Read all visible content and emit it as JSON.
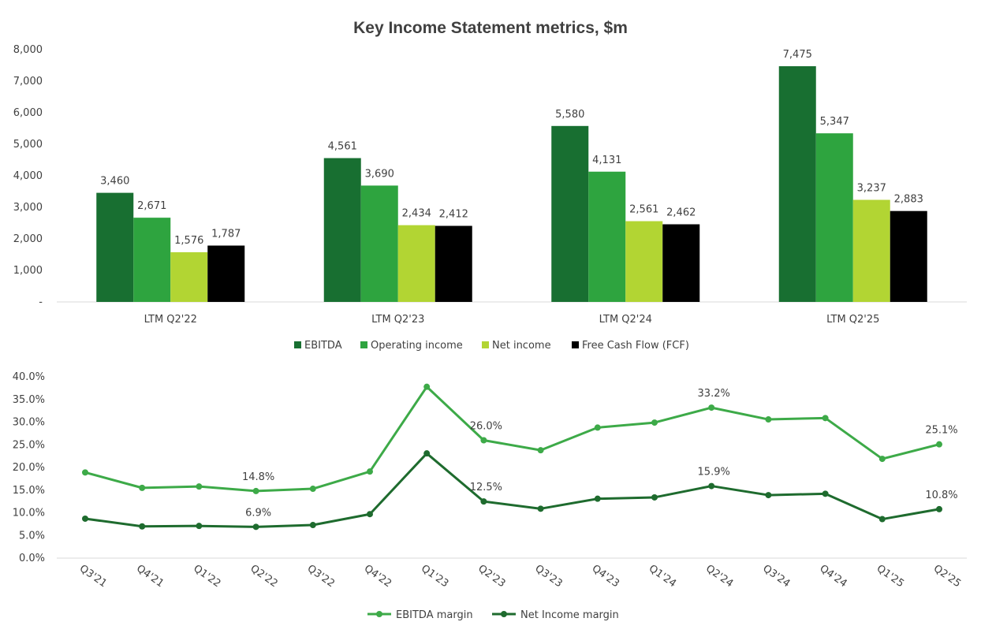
{
  "title": "Key Income Statement metrics, $m",
  "colors": {
    "ebitda": "#186F31",
    "operating_income": "#2EA43F",
    "net_income": "#B2D533",
    "fcf": "#000000",
    "ebitda_margin": "#3DAA48",
    "net_income_margin": "#1E6B2E"
  },
  "chart_data": [
    {
      "type": "bar",
      "title": "Key Income Statement metrics, $m",
      "categories": [
        "LTM Q2'22",
        "LTM Q2'23",
        "LTM Q2'24",
        "LTM Q2'25"
      ],
      "series": [
        {
          "name": "EBITDA",
          "values": [
            3460,
            4561,
            5580,
            7475
          ],
          "labels": [
            "3,460",
            "4,561",
            "5,580",
            "7,475"
          ]
        },
        {
          "name": "Operating income",
          "values": [
            2671,
            3690,
            4131,
            5347
          ],
          "labels": [
            "2,671",
            "3,690",
            "4,131",
            "5,347"
          ]
        },
        {
          "name": "Net income",
          "values": [
            1576,
            2434,
            2561,
            3237
          ],
          "labels": [
            "1,576",
            "2,434",
            "2,561",
            "3,237"
          ]
        },
        {
          "name": "Free Cash Flow (FCF)",
          "values": [
            1787,
            2412,
            2462,
            2883
          ],
          "labels": [
            "1,787",
            "2,412",
            "2,462",
            "2,883"
          ]
        }
      ],
      "ylim": [
        0,
        8000
      ],
      "yticks": [
        "-",
        "1,000",
        "2,000",
        "3,000",
        "4,000",
        "5,000",
        "6,000",
        "7,000",
        "8,000"
      ],
      "legend": "bottom",
      "grid": false
    },
    {
      "type": "line",
      "categories": [
        "Q3'21",
        "Q4'21",
        "Q1'22",
        "Q2'22",
        "Q3'22",
        "Q4'22",
        "Q1'23",
        "Q2'23",
        "Q3'23",
        "Q4'23",
        "Q1'24",
        "Q2'24",
        "Q3'24",
        "Q4'24",
        "Q1'25",
        "Q2'25"
      ],
      "series": [
        {
          "name": "EBITDA margin",
          "values": [
            18.9,
            15.5,
            15.8,
            14.8,
            15.3,
            19.1,
            37.8,
            26.0,
            23.8,
            28.8,
            29.9,
            33.2,
            30.6,
            30.9,
            21.9,
            25.1
          ],
          "labels": {
            "3": "14.8%",
            "7": "26.0%",
            "11": "33.2%",
            "15": "25.1%"
          }
        },
        {
          "name": "Net Income margin",
          "values": [
            8.7,
            7.0,
            7.1,
            6.9,
            7.3,
            9.7,
            23.1,
            12.5,
            10.9,
            13.1,
            13.4,
            15.9,
            13.9,
            14.2,
            8.6,
            10.8
          ],
          "labels": {
            "3": "6.9%",
            "7": "12.5%",
            "11": "15.9%",
            "15": "10.8%"
          }
        }
      ],
      "ylim": [
        0,
        40
      ],
      "yticks": [
        "0.0%",
        "5.0%",
        "10.0%",
        "15.0%",
        "20.0%",
        "25.0%",
        "30.0%",
        "35.0%",
        "40.0%"
      ],
      "legend": "bottom",
      "grid": false
    }
  ]
}
